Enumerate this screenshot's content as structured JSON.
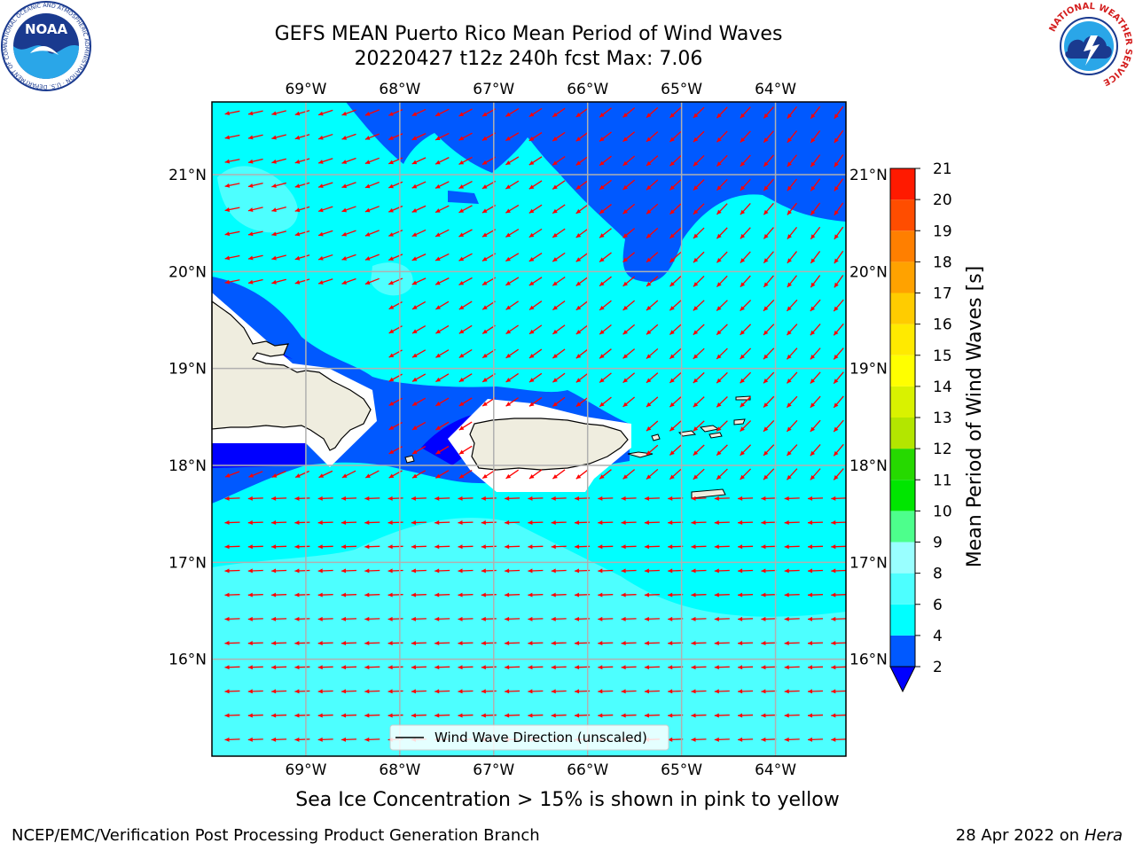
{
  "header": {
    "title_line1": "GEFS MEAN Puerto Rico Mean Period of Wind Waves",
    "title_line2": "20220427 t12z 240h fcst   Max: 7.06"
  },
  "logos": {
    "noaa_text": "NOAA",
    "noaa_ring_text": "NATIONAL OCEANIC AND ATMOSPHERIC ADMINISTRATION · U.S. DEPARTMENT OF COMMERCE",
    "nws_ring_text": "NATIONAL WEATHER SERVICE"
  },
  "map": {
    "lon_labels": [
      "69°W",
      "68°W",
      "67°W",
      "66°W",
      "65°W",
      "64°W"
    ],
    "lat_labels": [
      "21°N",
      "20°N",
      "19°N",
      "18°N",
      "17°N",
      "16°N"
    ],
    "lon_values": [
      -69,
      -68,
      -67,
      -66,
      -65,
      -64
    ],
    "lat_values": [
      21,
      20,
      19,
      18,
      17,
      16
    ],
    "extent": {
      "lon_min": -70,
      "lon_max": -63.25,
      "lat_min": 15,
      "lat_max": 21.75
    },
    "arrow_color": "#ff0000",
    "land_color": "#efeddf",
    "legend_label": "Wind Wave Direction (unscaled)"
  },
  "colorbar": {
    "title": "Mean Period of Wind Waves [s]",
    "ticks": [
      "2",
      "4",
      "6",
      "8",
      "9",
      "10",
      "11",
      "12",
      "13",
      "14",
      "15",
      "16",
      "17",
      "18",
      "19",
      "20",
      "21"
    ],
    "colors": [
      "#0059ff",
      "#00ffff",
      "#4dffff",
      "#99ffff",
      "#4dff8c",
      "#00e600",
      "#26d900",
      "#b3e600",
      "#d9f200",
      "#ffff00",
      "#ffea00",
      "#ffcc00",
      "#ffa200",
      "#ff7f00",
      "#ff4d00",
      "#ff1a00"
    ],
    "under_color": "#0000ff"
  },
  "period_colors": {
    "2-4": "#0059ff",
    "4-6": "#00ffff",
    "6-8": "#4dffff"
  },
  "footer": {
    "caption": "Sea Ice Concentration > 15% is shown in pink to yellow",
    "credit": "NCEP/EMC/Verification Post Processing Product Generation Branch",
    "date": "28 Apr 2022 on",
    "host": "Hera"
  }
}
